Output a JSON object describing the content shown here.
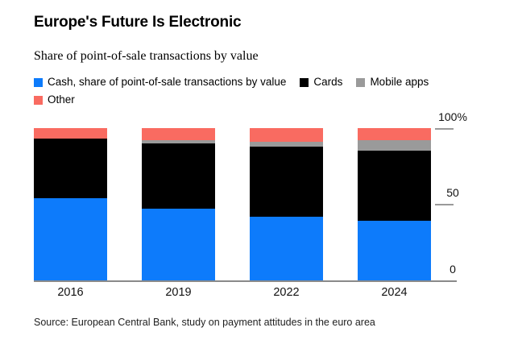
{
  "header": {
    "title": "Europe's Future Is Electronic",
    "subtitle": "Share of point-of-sale transactions by value"
  },
  "legend": [
    {
      "label": "Cash, share of point-of-sale transactions by value",
      "color": "#0d7bfb"
    },
    {
      "label": "Cards",
      "color": "#000000"
    },
    {
      "label": "Mobile apps",
      "color": "#9a9a9a"
    },
    {
      "label": "Other",
      "color": "#f96b61"
    }
  ],
  "chart_data": {
    "type": "bar",
    "stacked": true,
    "title": "Europe's Future Is Electronic",
    "subtitle": "Share of point-of-sale transactions by value",
    "categories": [
      "2016",
      "2019",
      "2022",
      "2024"
    ],
    "series": [
      {
        "name": "Cash",
        "color": "#0d7bfb",
        "values": [
          54,
          47,
          42,
          39
        ]
      },
      {
        "name": "Cards",
        "color": "#000000",
        "values": [
          39,
          43,
          46,
          46
        ]
      },
      {
        "name": "Mobile apps",
        "color": "#9a9a9a",
        "values": [
          0,
          2,
          3,
          7
        ]
      },
      {
        "name": "Other",
        "color": "#f96b61",
        "values": [
          7,
          8,
          9,
          8
        ]
      }
    ],
    "xlabel": "",
    "ylabel": "",
    "ylim": [
      0,
      100
    ],
    "y_ticks": [
      "100%",
      "50",
      "0"
    ],
    "unit": "percent",
    "grid": false,
    "legend_position": "top",
    "axis_side": "right",
    "colors": {
      "baseline": "#8a8a8a",
      "tick": "#9a9a9a"
    }
  },
  "source": "Source: European Central Bank, study on payment attitudes in the euro area"
}
